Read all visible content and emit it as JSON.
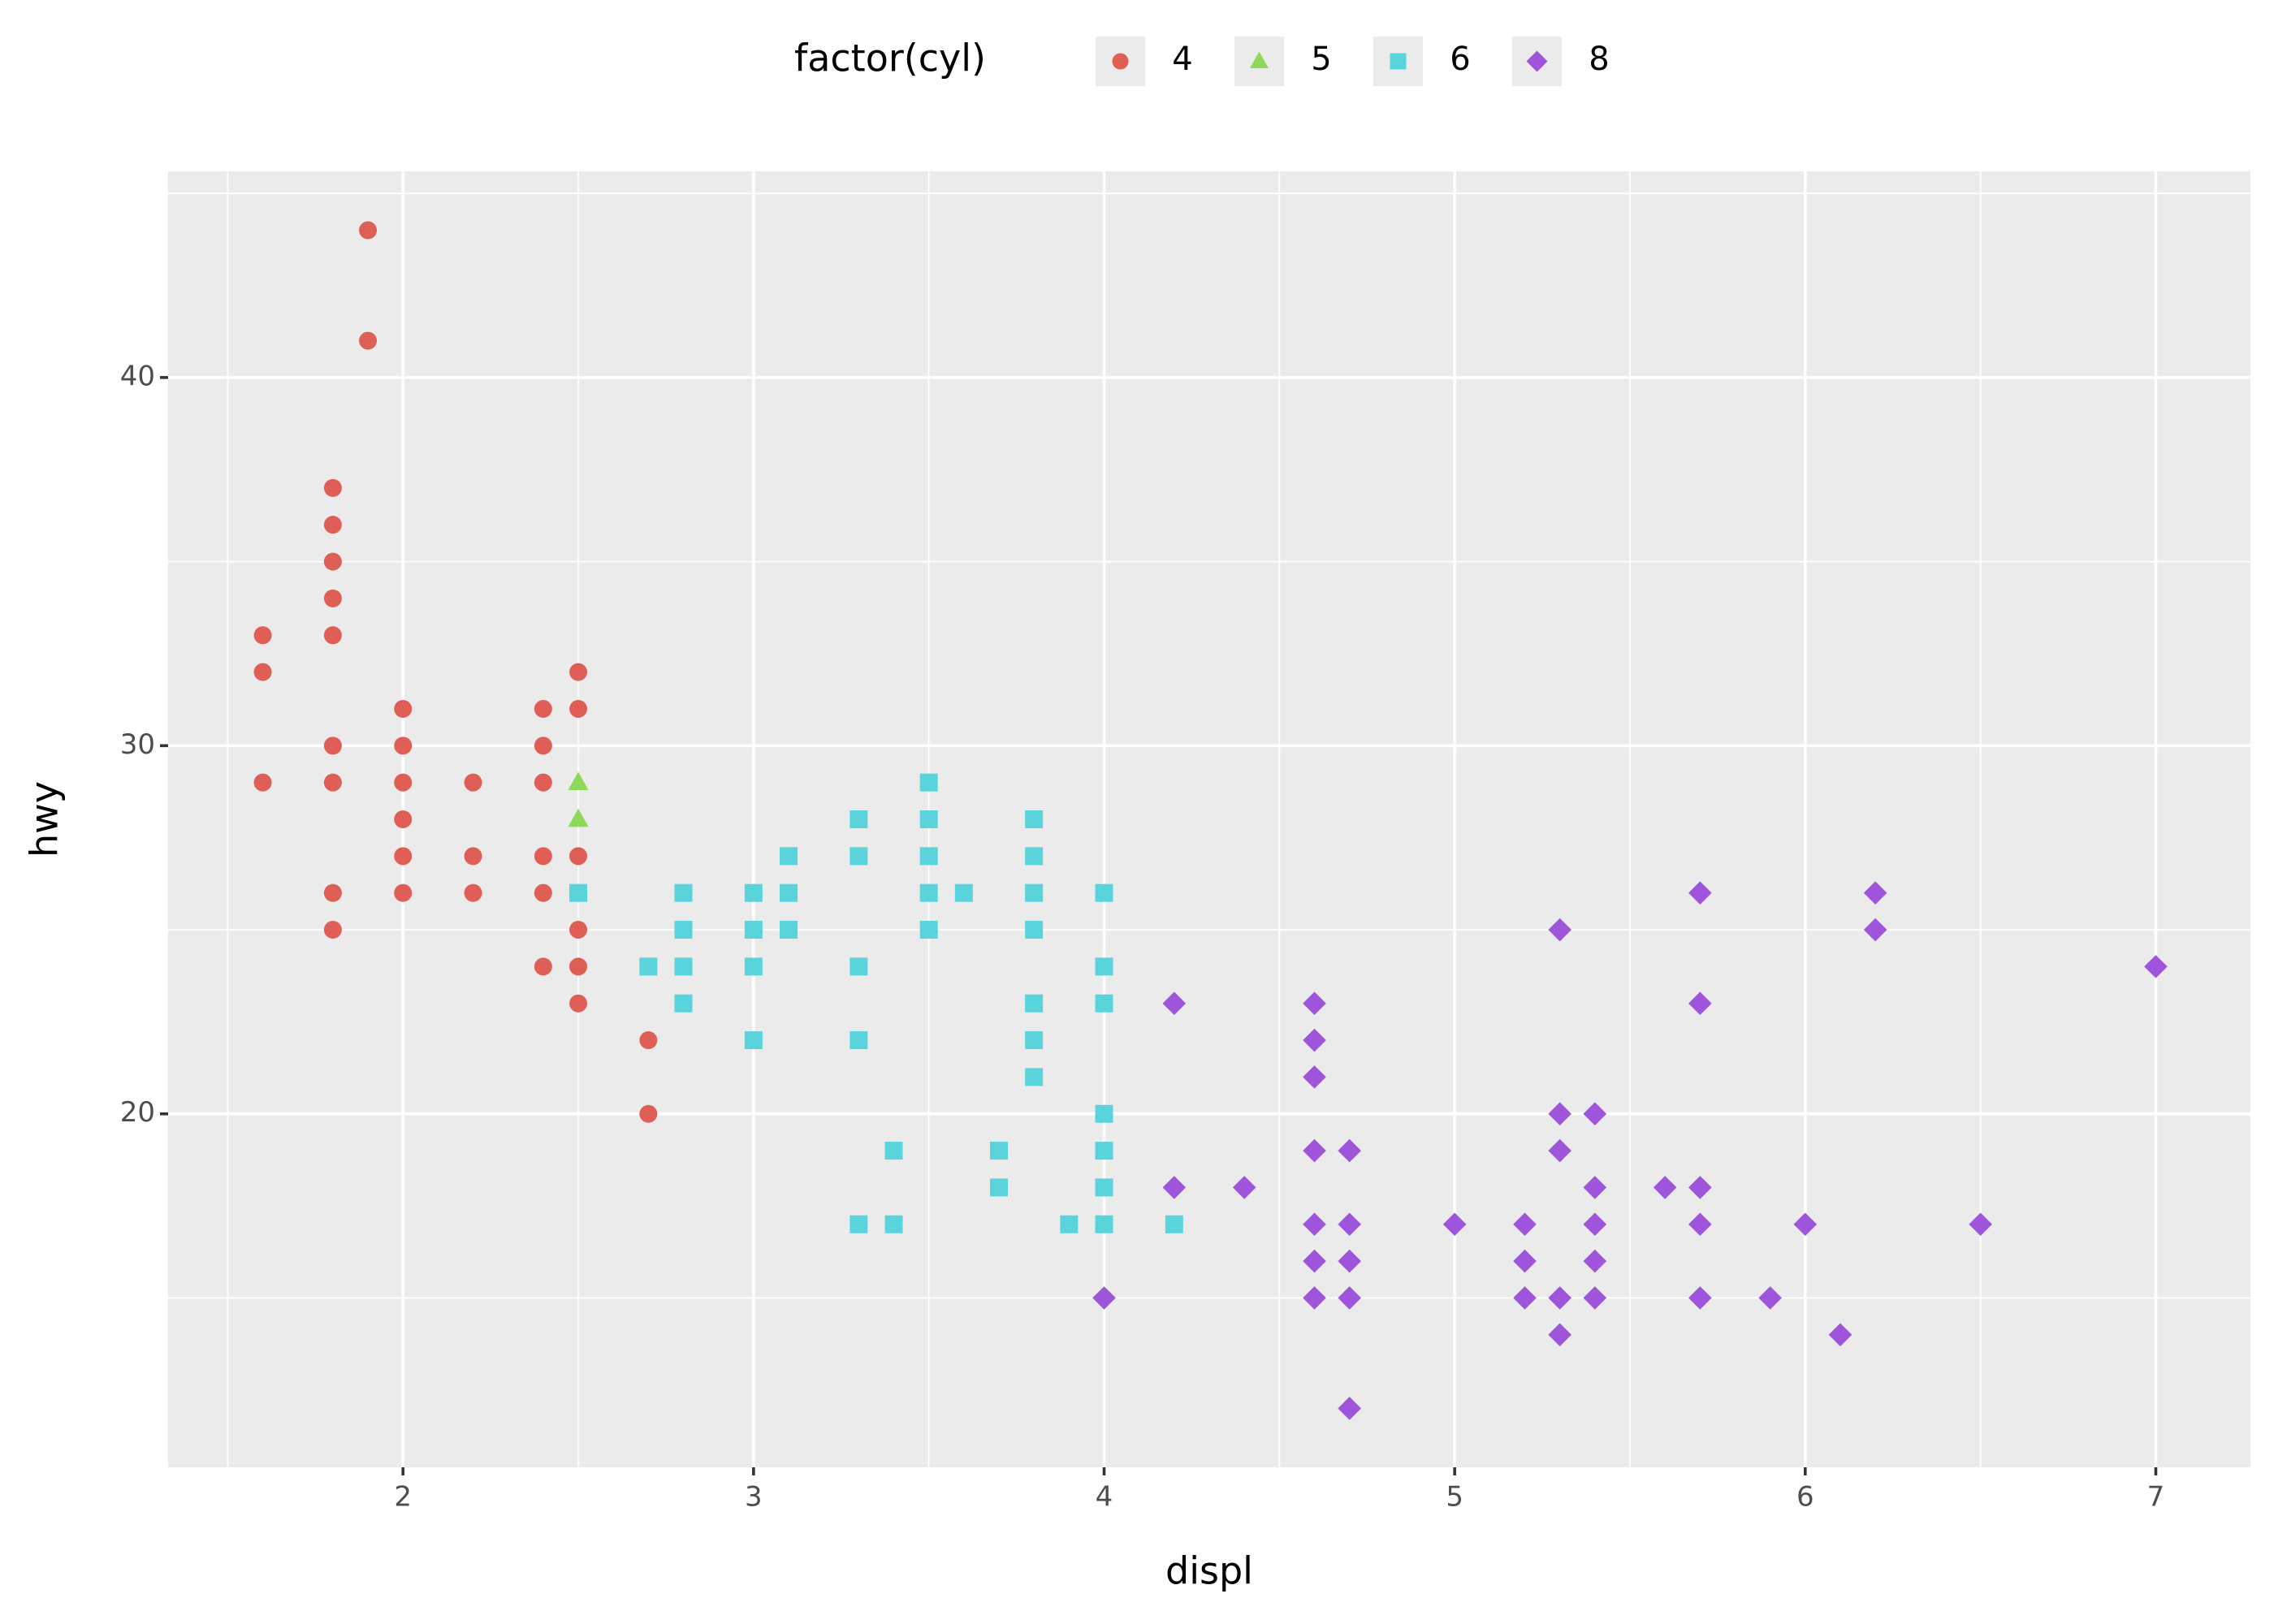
{
  "chart_data": {
    "type": "scatter",
    "x_label": "displ",
    "y_label": "hwy",
    "legend_title": "factor(cyl)",
    "legend": "top",
    "grid": true,
    "xlim": [
      1.33,
      7.27
    ],
    "ylim": [
      10.4,
      45.6
    ],
    "xticks": [
      2,
      3,
      4,
      5,
      6,
      7
    ],
    "yticks": [
      20,
      30,
      40
    ],
    "xminor": [
      1.5,
      2.5,
      3.5,
      4.5,
      5.5,
      6.5
    ],
    "yminor": [
      15,
      25,
      35,
      45
    ],
    "series": [
      {
        "name": "4",
        "color": "#df5f57",
        "shape": "circle",
        "x": [
          1.6,
          1.6,
          1.6,
          1.8,
          1.8,
          1.8,
          1.8,
          1.8,
          1.8,
          1.8,
          1.8,
          1.8,
          1.9,
          1.9,
          2.0,
          2.0,
          2.0,
          2.0,
          2.0,
          2.0,
          2.2,
          2.2,
          2.2,
          2.4,
          2.4,
          2.4,
          2.4,
          2.4,
          2.4,
          2.5,
          2.5,
          2.5,
          2.5,
          2.5,
          2.5,
          2.7,
          2.7
        ],
        "y": [
          33,
          32,
          29,
          37,
          36,
          35,
          34,
          33,
          30,
          29,
          26,
          25,
          44,
          41,
          31,
          30,
          29,
          28,
          27,
          26,
          29,
          27,
          26,
          31,
          30,
          29,
          27,
          26,
          24,
          32,
          31,
          27,
          25,
          24,
          23,
          22,
          20
        ]
      },
      {
        "name": "5",
        "color": "#8fd95a",
        "shape": "triangle",
        "x": [
          2.5,
          2.5
        ],
        "y": [
          29,
          28
        ]
      },
      {
        "name": "6",
        "color": "#5ad4dc",
        "shape": "square",
        "x": [
          2.5,
          2.7,
          2.8,
          2.8,
          2.8,
          2.8,
          3.0,
          3.0,
          3.0,
          3.0,
          3.1,
          3.1,
          3.1,
          3.3,
          3.3,
          3.3,
          3.3,
          3.3,
          3.4,
          3.4,
          3.5,
          3.5,
          3.5,
          3.5,
          3.5,
          3.6,
          3.7,
          3.7,
          3.8,
          3.8,
          3.8,
          3.8,
          3.8,
          3.8,
          3.8,
          3.9,
          4.0,
          4.0,
          4.0,
          4.0,
          4.0,
          4.0,
          4.0,
          4.2
        ],
        "y": [
          26,
          24,
          26,
          25,
          24,
          23,
          26,
          25,
          24,
          22,
          27,
          26,
          25,
          28,
          27,
          24,
          22,
          17,
          19,
          17,
          29,
          28,
          27,
          26,
          25,
          26,
          19,
          18,
          28,
          27,
          26,
          25,
          23,
          22,
          21,
          17,
          26,
          24,
          23,
          20,
          19,
          18,
          17,
          17
        ]
      },
      {
        "name": "8",
        "color": "#9e55dc",
        "shape": "diamond",
        "x": [
          4.0,
          4.2,
          4.2,
          4.4,
          4.6,
          4.6,
          4.6,
          4.6,
          4.6,
          4.6,
          4.6,
          4.7,
          4.7,
          4.7,
          4.7,
          4.7,
          5.0,
          5.2,
          5.2,
          5.2,
          5.3,
          5.3,
          5.3,
          5.3,
          5.3,
          5.4,
          5.4,
          5.4,
          5.4,
          5.4,
          5.6,
          5.7,
          5.7,
          5.7,
          5.7,
          5.7,
          5.9,
          6.0,
          6.1,
          6.2,
          6.2,
          6.5,
          7.0
        ],
        "y": [
          15,
          23,
          18,
          18,
          23,
          22,
          21,
          19,
          17,
          16,
          15,
          19,
          17,
          16,
          15,
          12,
          17,
          17,
          16,
          15,
          25,
          20,
          19,
          15,
          14,
          20,
          18,
          17,
          16,
          15,
          18,
          26,
          23,
          18,
          17,
          15,
          15,
          17,
          14,
          26,
          25,
          17,
          24
        ]
      }
    ]
  }
}
